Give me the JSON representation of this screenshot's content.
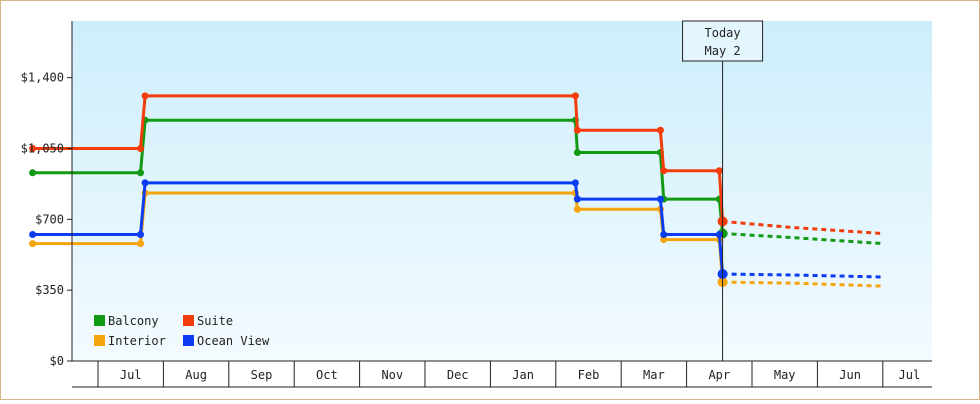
{
  "chart_data": {
    "type": "line",
    "step": true,
    "title": "",
    "xlabel": "",
    "ylabel": "",
    "ylim": [
      0,
      1680
    ],
    "y_ticks": [
      {
        "value": 0,
        "label": "$0"
      },
      {
        "value": 350,
        "label": "$350"
      },
      {
        "value": 700,
        "label": "$700"
      },
      {
        "value": 1050,
        "label": "$1,050"
      },
      {
        "value": 1400,
        "label": "$1,400"
      }
    ],
    "x_months": [
      "Jul",
      "Aug",
      "Sep",
      "Oct",
      "Nov",
      "Dec",
      "Jan",
      "Feb",
      "Mar",
      "Apr",
      "May",
      "Jun",
      "Jul"
    ],
    "today_marker": {
      "line1": "Today",
      "line2": "May 2",
      "x": 10.55
    },
    "legend": {
      "placement": "bottom-left",
      "items": [
        {
          "name": "Balcony",
          "color": "#129a12"
        },
        {
          "name": "Suite",
          "color": "#f23c0c"
        },
        {
          "name": "Interior",
          "color": "#f5a40c"
        },
        {
          "name": "Ocean View",
          "color": "#0c3cf2"
        }
      ]
    },
    "series": [
      {
        "name": "Balcony",
        "color": "#129a12",
        "points": [
          [
            0,
            930
          ],
          [
            1.65,
            930
          ],
          [
            1.72,
            1190
          ],
          [
            8.3,
            1190
          ],
          [
            8.33,
            1030
          ],
          [
            9.6,
            1030
          ],
          [
            9.65,
            800
          ],
          [
            10.5,
            800
          ],
          [
            10.55,
            630
          ]
        ],
        "forecast": [
          [
            10.55,
            630
          ],
          [
            11.6,
            610
          ],
          [
            13.0,
            580
          ]
        ]
      },
      {
        "name": "Suite",
        "color": "#f23c0c",
        "points": [
          [
            0,
            1050
          ],
          [
            1.65,
            1050
          ],
          [
            1.72,
            1310
          ],
          [
            8.3,
            1310
          ],
          [
            8.33,
            1140
          ],
          [
            9.6,
            1140
          ],
          [
            9.65,
            940
          ],
          [
            10.5,
            940
          ],
          [
            10.55,
            690
          ]
        ],
        "forecast": [
          [
            10.55,
            690
          ],
          [
            11.6,
            660
          ],
          [
            13.0,
            630
          ]
        ]
      },
      {
        "name": "Interior",
        "color": "#f5a40c",
        "points": [
          [
            0,
            580
          ],
          [
            1.65,
            580
          ],
          [
            1.72,
            830
          ],
          [
            8.3,
            830
          ],
          [
            8.33,
            750
          ],
          [
            9.6,
            750
          ],
          [
            9.65,
            600
          ],
          [
            10.5,
            600
          ],
          [
            10.55,
            390
          ]
        ],
        "forecast": [
          [
            10.55,
            390
          ],
          [
            11.6,
            385
          ],
          [
            13.0,
            370
          ]
        ]
      },
      {
        "name": "Ocean View",
        "color": "#0c3cf2",
        "points": [
          [
            0,
            625
          ],
          [
            1.65,
            625
          ],
          [
            1.72,
            880
          ],
          [
            8.3,
            880
          ],
          [
            8.33,
            800
          ],
          [
            9.6,
            800
          ],
          [
            9.65,
            625
          ],
          [
            10.5,
            625
          ],
          [
            10.55,
            430
          ]
        ],
        "forecast": [
          [
            10.55,
            430
          ],
          [
            11.6,
            425
          ],
          [
            13.0,
            415
          ]
        ]
      }
    ]
  }
}
